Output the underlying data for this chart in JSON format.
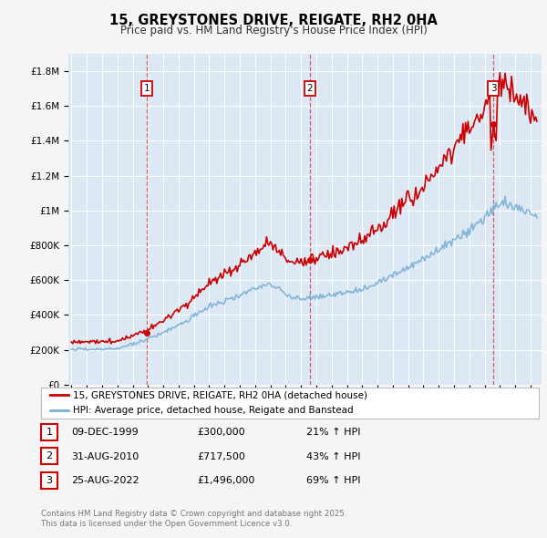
{
  "title": "15, GREYSTONES DRIVE, REIGATE, RH2 0HA",
  "subtitle": "Price paid vs. HM Land Registry's House Price Index (HPI)",
  "background_color": "#f5f5f5",
  "plot_background": "#dce9f5",
  "red_color": "#cc0000",
  "grid_color": "#ffffff",
  "sale_prices": [
    300000,
    717500,
    1496000
  ],
  "sale_labels": [
    "1",
    "2",
    "3"
  ],
  "sale_pct_hpi": [
    "21% ↑ HPI",
    "43% ↑ HPI",
    "69% ↑ HPI"
  ],
  "sale_dates_display": [
    "09-DEC-1999",
    "31-AUG-2010",
    "25-AUG-2022"
  ],
  "sale_prices_display": [
    "£300,000",
    "£717,500",
    "£1,496,000"
  ],
  "hpi_line_color": "#7bafd4",
  "yticks": [
    0,
    200000,
    400000,
    600000,
    800000,
    1000000,
    1200000,
    1400000,
    1600000,
    1800000
  ],
  "ylim": [
    0,
    1900000
  ],
  "legend_label_red": "15, GREYSTONES DRIVE, REIGATE, RH2 0HA (detached house)",
  "legend_label_blue": "HPI: Average price, detached house, Reigate and Banstead",
  "footer": "Contains HM Land Registry data © Crown copyright and database right 2025.\nThis data is licensed under the Open Government Licence v3.0."
}
